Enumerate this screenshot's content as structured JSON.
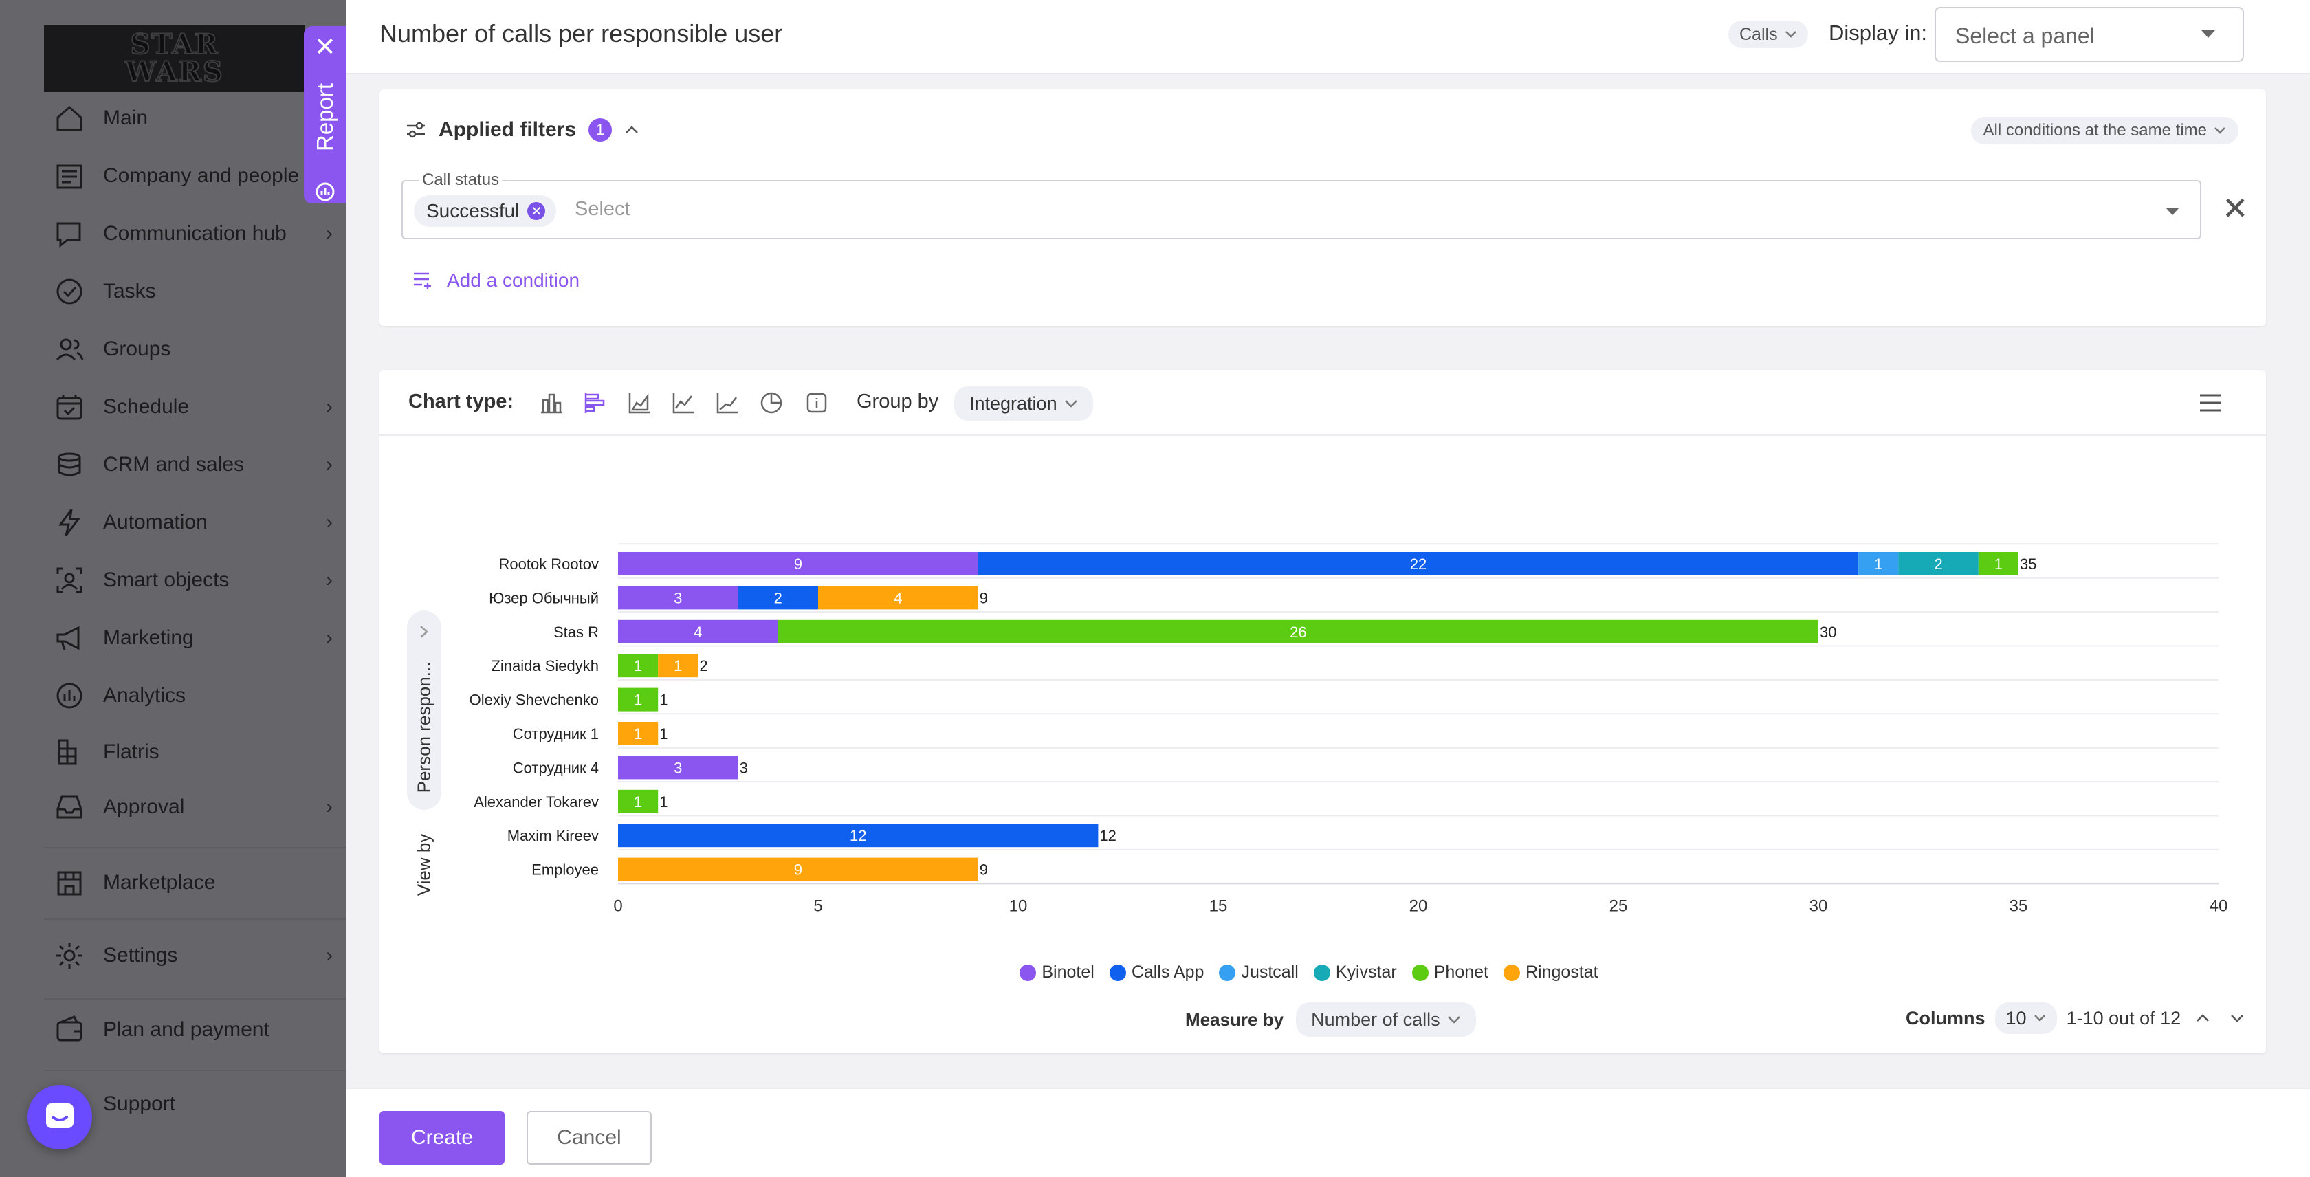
{
  "sidebar": {
    "logo_text": "STAR WARS",
    "items": [
      {
        "label": "Main",
        "icon": "home-icon",
        "chevron": false
      },
      {
        "label": "Company and people",
        "icon": "building-icon",
        "chevron": false
      },
      {
        "label": "Communication hub",
        "icon": "chat-icon",
        "chevron": true
      },
      {
        "label": "Tasks",
        "icon": "check-circle-icon",
        "chevron": false
      },
      {
        "label": "Groups",
        "icon": "users-icon",
        "chevron": false
      },
      {
        "label": "Schedule",
        "icon": "calendar-icon",
        "chevron": true
      },
      {
        "label": "CRM and sales",
        "icon": "coins-icon",
        "chevron": true
      },
      {
        "label": "Automation",
        "icon": "lightning-icon",
        "chevron": true
      },
      {
        "label": "Smart objects",
        "icon": "smart-object-icon",
        "chevron": true
      },
      {
        "label": "Marketing",
        "icon": "megaphone-icon",
        "chevron": true
      },
      {
        "label": "Analytics",
        "icon": "analytics-icon",
        "chevron": false
      },
      {
        "label": "Flatris",
        "icon": "flatris-icon",
        "chevron": false
      },
      {
        "label": "Approval",
        "icon": "inbox-icon",
        "chevron": true
      },
      {
        "label": "Marketplace",
        "icon": "store-icon",
        "chevron": false
      },
      {
        "label": "Settings",
        "icon": "gear-icon",
        "chevron": true
      },
      {
        "label": "Plan and payment",
        "icon": "wallet-icon",
        "chevron": false
      },
      {
        "label": "Support",
        "icon": "support-icon",
        "chevron": false
      }
    ]
  },
  "report_tab": {
    "label": "Report",
    "close": "✕"
  },
  "header": {
    "title": "Number of calls per responsible user",
    "entity_pill": "Calls",
    "display_label": "Display in:",
    "panel_placeholder": "Select a panel"
  },
  "filters": {
    "title": "Applied filters",
    "count": "1",
    "mode": "All conditions at the same time",
    "field_label": "Call status",
    "chip": "Successful",
    "select_placeholder": "Select",
    "add_condition": "Add a condition"
  },
  "chart_toolbar": {
    "chart_type_label": "Chart type:",
    "group_by_label": "Group by",
    "group_by_value": "Integration"
  },
  "view_by": {
    "label": "View by",
    "value": "Person respon..."
  },
  "chart_data": {
    "type": "bar",
    "orientation": "horizontal",
    "stacked": true,
    "categories": [
      "Rootok Rootov",
      "Юзер Обычный",
      "Stas R",
      "Zinaida Siedykh",
      "Olexiy Shevchenko",
      "Сотрудник 1",
      "Сотрудник 4",
      "Alexander Tokarev",
      "Maxim Kireev",
      "Employee"
    ],
    "series": [
      {
        "name": "Binotel",
        "color": "#8b55f0",
        "values": [
          9,
          3,
          4,
          0,
          0,
          0,
          3,
          0,
          0,
          0
        ]
      },
      {
        "name": "Calls App",
        "color": "#1060f0",
        "values": [
          22,
          2,
          0,
          0,
          0,
          0,
          0,
          0,
          12,
          0
        ]
      },
      {
        "name": "Justcall",
        "color": "#35a0f2",
        "values": [
          1,
          0,
          0,
          0,
          0,
          0,
          0,
          0,
          0,
          0
        ]
      },
      {
        "name": "Kyivstar",
        "color": "#15aab5",
        "values": [
          2,
          0,
          0,
          0,
          0,
          0,
          0,
          0,
          0,
          0
        ]
      },
      {
        "name": "Phonet",
        "color": "#5ccc12",
        "values": [
          1,
          0,
          26,
          1,
          1,
          0,
          0,
          1,
          0,
          0
        ]
      },
      {
        "name": "Ringostat",
        "color": "#ffa40a",
        "values": [
          0,
          4,
          0,
          1,
          0,
          1,
          0,
          0,
          0,
          9
        ]
      }
    ],
    "totals": [
      35,
      9,
      30,
      2,
      1,
      1,
      3,
      1,
      12,
      9
    ],
    "xlim": [
      0,
      40
    ],
    "x_ticks": [
      0,
      5,
      10,
      15,
      20,
      25,
      30,
      35,
      40
    ],
    "grid": true,
    "legend_position": "bottom-center"
  },
  "footer_controls": {
    "measure_label": "Measure by",
    "measure_value": "Number of calls",
    "columns_label": "Columns",
    "columns_value": "10",
    "range_text": "1-10 out of 12"
  },
  "buttons": {
    "create": "Create",
    "cancel": "Cancel"
  }
}
